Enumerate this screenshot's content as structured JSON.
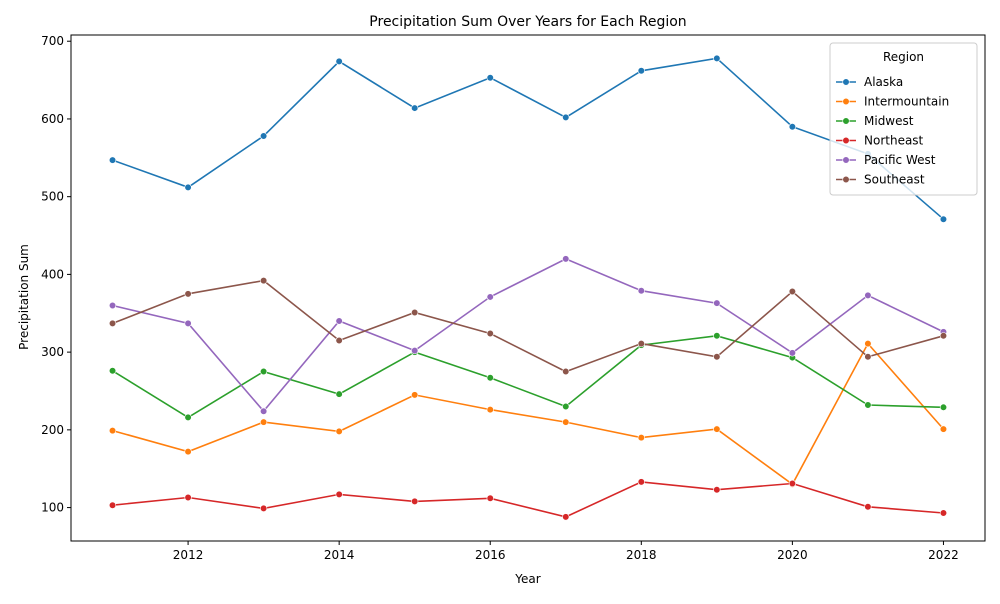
{
  "chart_data": {
    "type": "line",
    "title": "Precipitation Sum Over Years for Each Region",
    "xlabel": "Year",
    "ylabel": "Precipitation Sum",
    "x": [
      2011,
      2012,
      2013,
      2014,
      2015,
      2016,
      2017,
      2018,
      2019,
      2020,
      2021,
      2022
    ],
    "xlim": [
      2010.45,
      2022.55
    ],
    "ylim": [
      57,
      708
    ],
    "x_ticks": [
      2012,
      2014,
      2016,
      2018,
      2020,
      2022
    ],
    "y_ticks": [
      100,
      200,
      300,
      400,
      500,
      600,
      700
    ],
    "legend_title": "Region",
    "legend_position": "top-right",
    "grid": false,
    "series": [
      {
        "name": "Alaska",
        "color": "#1f77b4",
        "values": [
          547,
          512,
          578,
          674,
          614,
          653,
          602,
          662,
          678,
          590,
          555,
          471
        ]
      },
      {
        "name": "Intermountain",
        "color": "#ff7f0e",
        "values": [
          199,
          172,
          210,
          198,
          245,
          226,
          210,
          190,
          201,
          130,
          311,
          201
        ]
      },
      {
        "name": "Midwest",
        "color": "#2ca02c",
        "values": [
          276,
          216,
          275,
          246,
          300,
          267,
          230,
          309,
          321,
          293,
          232,
          229
        ]
      },
      {
        "name": "Northeast",
        "color": "#d62728",
        "values": [
          103,
          113,
          99,
          117,
          108,
          112,
          88,
          133,
          123,
          131,
          101,
          93
        ]
      },
      {
        "name": "Pacific West",
        "color": "#9467bd",
        "values": [
          360,
          337,
          224,
          340,
          302,
          371,
          420,
          379,
          363,
          299,
          373,
          326
        ]
      },
      {
        "name": "Southeast",
        "color": "#8c564b",
        "values": [
          337,
          375,
          392,
          315,
          351,
          324,
          275,
          311,
          294,
          378,
          294,
          321
        ]
      }
    ]
  }
}
